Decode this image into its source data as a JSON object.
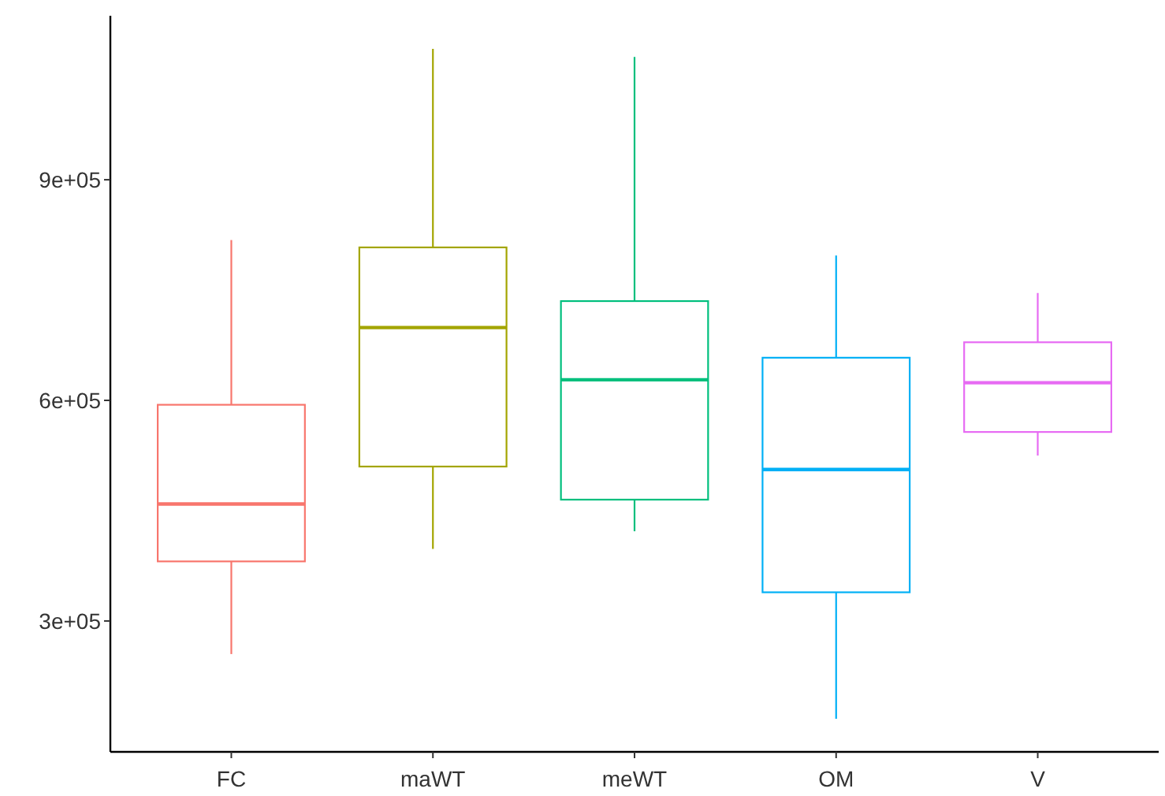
{
  "chart_data": {
    "type": "box",
    "categories": [
      "FC",
      "maWT",
      "meWT",
      "OM",
      "V"
    ],
    "series": [
      {
        "color": "#F8766D",
        "boxes": [
          {
            "low": 255000,
            "q1": 381000,
            "median": 459000,
            "q3": 594000,
            "high": 818000
          },
          null,
          null,
          null,
          null
        ]
      },
      {
        "color": "#A3A500",
        "boxes": [
          null,
          {
            "low": 398000,
            "q1": 510000,
            "median": 699000,
            "q3": 808000,
            "high": 1078000
          },
          null,
          null,
          null
        ]
      },
      {
        "color": "#00BF7D",
        "boxes": [
          null,
          null,
          {
            "low": 422000,
            "q1": 465000,
            "median": 628000,
            "q3": 735000,
            "high": 1067000
          },
          null,
          null
        ]
      },
      {
        "color": "#00B0F6",
        "boxes": [
          null,
          null,
          null,
          {
            "low": 167000,
            "q1": 339000,
            "median": 506000,
            "q3": 658000,
            "high": 797000
          },
          null
        ]
      },
      {
        "color": "#E76BF3",
        "boxes": [
          null,
          null,
          null,
          null,
          {
            "low": 525000,
            "q1": 557000,
            "median": 624000,
            "q3": 679000,
            "high": 746000
          }
        ]
      }
    ],
    "ylim": [
      122000,
      1123000
    ],
    "yticks": [
      {
        "value": 300000,
        "label": "3e+05"
      },
      {
        "value": 600000,
        "label": "6e+05"
      },
      {
        "value": 900000,
        "label": "9e+05"
      }
    ],
    "grid": false
  }
}
